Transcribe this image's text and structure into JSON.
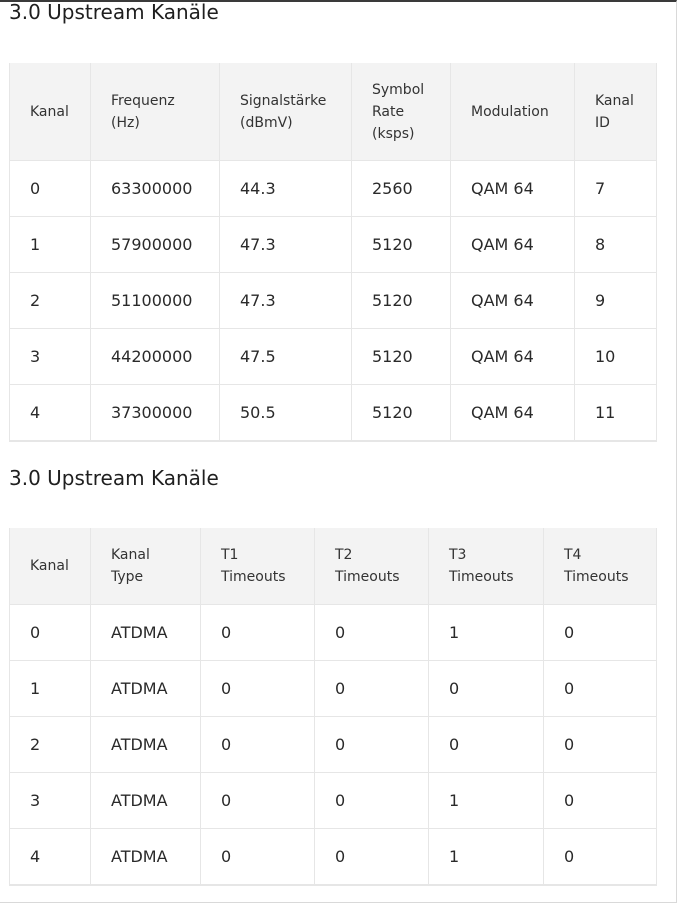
{
  "sections": [
    {
      "title": "3.0 Upstream Kanäle",
      "columns": [
        [
          "Kanal"
        ],
        [
          "Frequenz",
          "(Hz)"
        ],
        [
          "Signalstärke",
          "(dBmV)"
        ],
        [
          "Symbol",
          "Rate",
          "(ksps)"
        ],
        [
          "Modulation"
        ],
        [
          "Kanal",
          "ID"
        ]
      ],
      "rows": [
        [
          "0",
          "63300000",
          "44.3",
          "2560",
          "QAM 64",
          "7"
        ],
        [
          "1",
          "57900000",
          "47.3",
          "5120",
          "QAM 64",
          "8"
        ],
        [
          "2",
          "51100000",
          "47.3",
          "5120",
          "QAM 64",
          "9"
        ],
        [
          "3",
          "44200000",
          "47.5",
          "5120",
          "QAM 64",
          "10"
        ],
        [
          "4",
          "37300000",
          "50.5",
          "5120",
          "QAM 64",
          "11"
        ]
      ]
    },
    {
      "title": "3.0 Upstream Kanäle",
      "columns": [
        [
          "Kanal"
        ],
        [
          "Kanal",
          "Type"
        ],
        [
          "T1",
          "Timeouts"
        ],
        [
          "T2",
          "Timeouts"
        ],
        [
          "T3",
          "Timeouts"
        ],
        [
          "T4",
          "Timeouts"
        ]
      ],
      "rows": [
        [
          "0",
          "ATDMA",
          "0",
          "0",
          "1",
          "0"
        ],
        [
          "1",
          "ATDMA",
          "0",
          "0",
          "0",
          "0"
        ],
        [
          "2",
          "ATDMA",
          "0",
          "0",
          "0",
          "0"
        ],
        [
          "3",
          "ATDMA",
          "0",
          "0",
          "1",
          "0"
        ],
        [
          "4",
          "ATDMA",
          "0",
          "0",
          "1",
          "0"
        ]
      ]
    }
  ]
}
